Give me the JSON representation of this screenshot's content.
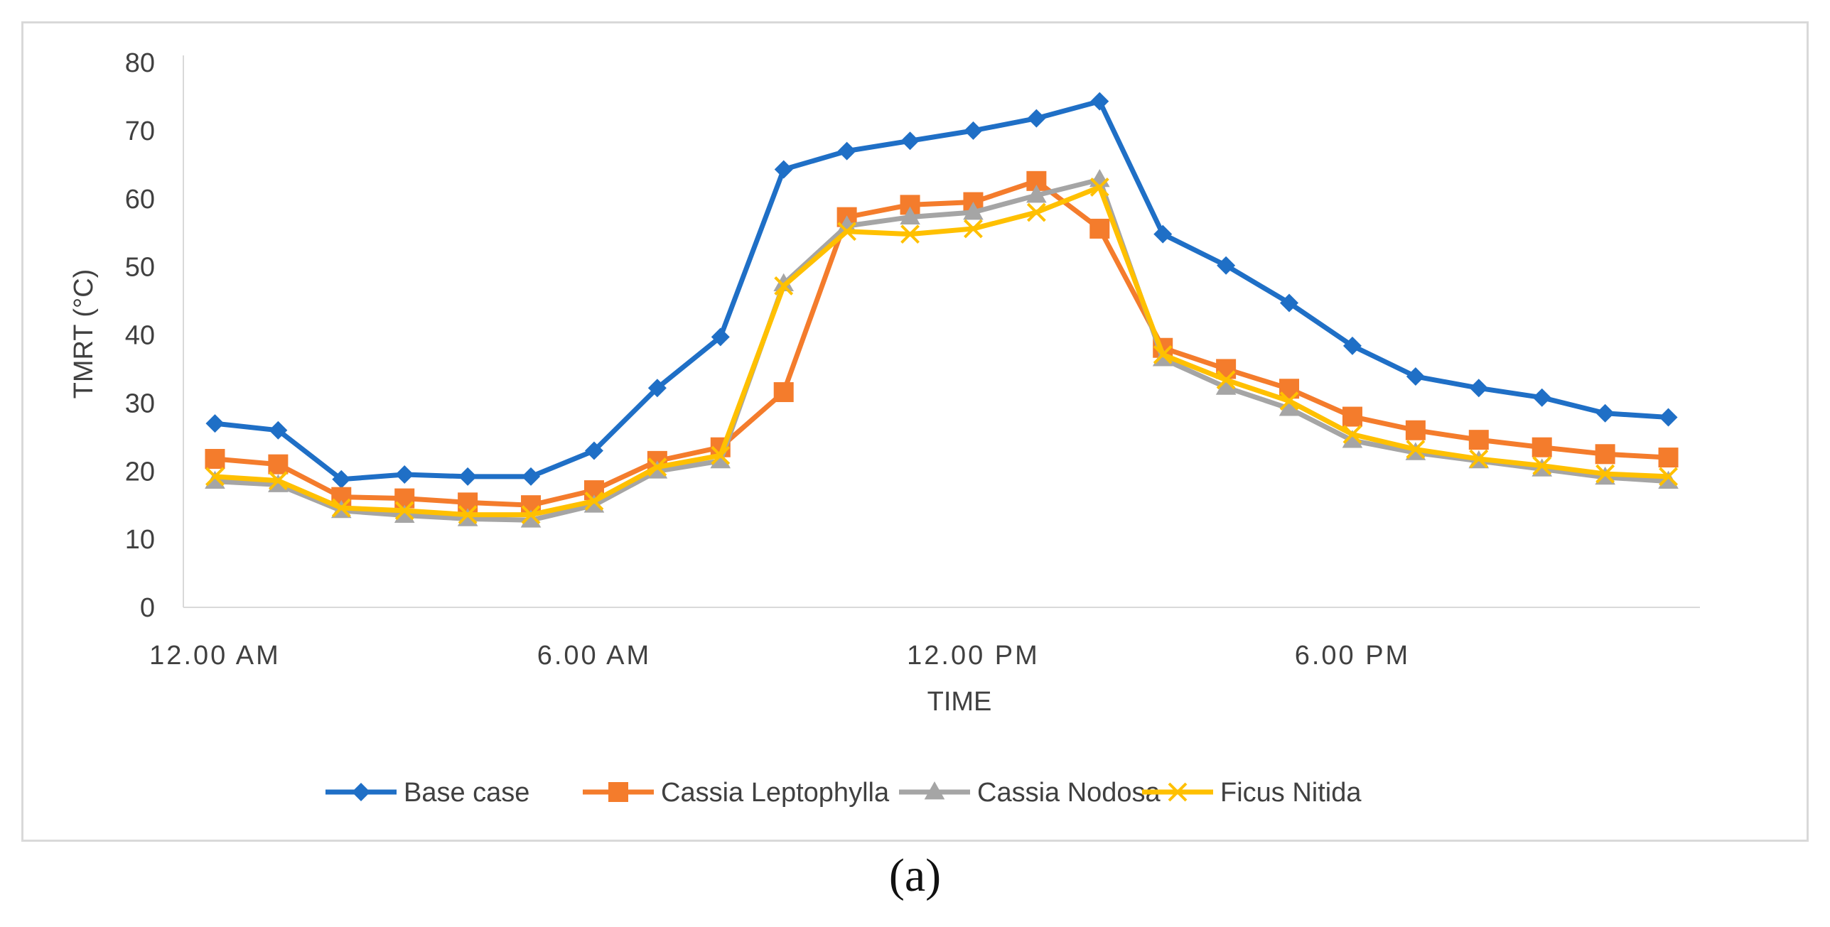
{
  "caption": "(a)",
  "chart_data": {
    "type": "line",
    "title": "",
    "xlabel": "TIME",
    "ylabel": "TMRT (°C)",
    "ylim": [
      0,
      80
    ],
    "y_ticks": [
      0,
      10,
      20,
      30,
      40,
      50,
      60,
      70,
      80
    ],
    "x_tick_labels": [
      {
        "index": 0,
        "label": "12.00 AM"
      },
      {
        "index": 6,
        "label": "6.00 AM"
      },
      {
        "index": 12,
        "label": "12.00 PM"
      },
      {
        "index": 18,
        "label": "6.00 PM"
      }
    ],
    "num_points": 24,
    "grid": false,
    "legend_position": "bottom",
    "series": [
      {
        "name": "Base case",
        "color": "#1f6fc6",
        "marker": "diamond",
        "values": [
          27,
          26,
          18.8,
          19.5,
          19.2,
          19.2,
          23,
          32.2,
          39.7,
          64.3,
          67,
          68.5,
          70,
          71.8,
          74.3,
          54.8,
          50.2,
          44.7,
          38.4,
          33.9,
          32.2,
          30.8,
          28.5,
          27.9
        ]
      },
      {
        "name": "Cassia Leptophylla",
        "color": "#f47c2c",
        "marker": "square",
        "values": [
          21.8,
          21,
          16.2,
          16,
          15.4,
          15,
          17.2,
          21.5,
          23.5,
          31.6,
          57.3,
          59.1,
          59.5,
          62.6,
          55.6,
          38.1,
          35,
          32.1,
          28,
          26,
          24.6,
          23.5,
          22.5,
          22
        ]
      },
      {
        "name": "Cassia Nodosa",
        "color": "#a5a5a5",
        "marker": "triangle",
        "values": [
          18.5,
          18,
          14.2,
          13.5,
          13,
          12.8,
          15,
          20,
          21.5,
          47.5,
          56,
          57.3,
          58,
          60.5,
          62.8,
          36.5,
          32.3,
          29.2,
          24.5,
          22.7,
          21.5,
          20.3,
          19.1,
          18.5
        ]
      },
      {
        "name": "Ficus Nitida",
        "color": "#ffc000",
        "marker": "x",
        "values": [
          19.2,
          18.6,
          14.6,
          14.2,
          13.6,
          13.6,
          15.6,
          20.6,
          22.3,
          47.2,
          55.2,
          54.8,
          55.6,
          58,
          61.7,
          37.1,
          33.4,
          30.3,
          25.4,
          23.2,
          21.8,
          20.8,
          19.6,
          19.2
        ]
      }
    ]
  }
}
